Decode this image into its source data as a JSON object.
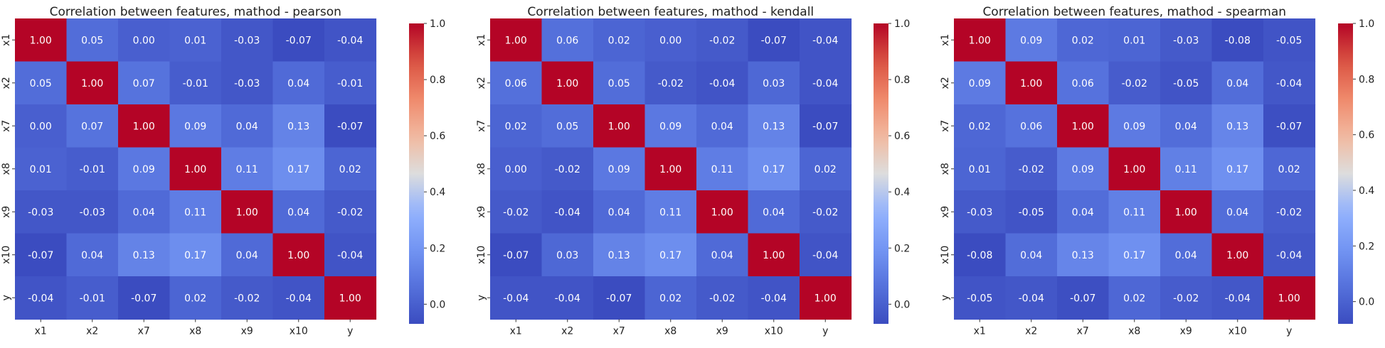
{
  "chart_data": [
    {
      "type": "heatmap",
      "title": "Correlation between features, mathod - pearson",
      "labels": [
        "x1",
        "x2",
        "x7",
        "x8",
        "x9",
        "x10",
        "y"
      ],
      "matrix": [
        [
          1.0,
          0.05,
          0.0,
          0.01,
          -0.03,
          -0.07,
          -0.04
        ],
        [
          0.05,
          1.0,
          0.07,
          -0.01,
          -0.03,
          0.04,
          -0.01
        ],
        [
          0.0,
          0.07,
          1.0,
          0.09,
          0.04,
          0.13,
          -0.07
        ],
        [
          0.01,
          -0.01,
          0.09,
          1.0,
          0.11,
          0.17,
          0.02
        ],
        [
          -0.03,
          -0.03,
          0.04,
          0.11,
          1.0,
          0.04,
          -0.02
        ],
        [
          -0.07,
          0.04,
          0.13,
          0.17,
          0.04,
          1.0,
          -0.04
        ],
        [
          -0.04,
          -0.01,
          -0.07,
          0.02,
          -0.02,
          -0.04,
          1.0
        ]
      ],
      "colormap": "coolwarm",
      "vmin": -0.07,
      "vmax": 1.0,
      "colorbar_ticks": [
        0.0,
        0.2,
        0.4,
        0.6,
        0.8,
        1.0
      ],
      "colorbar_tick_labels": [
        "0.0",
        "0.2",
        "0.4",
        "0.6",
        "0.8",
        "1.0"
      ]
    },
    {
      "type": "heatmap",
      "title": "Correlation between features, mathod - kendall",
      "labels": [
        "x1",
        "x2",
        "x7",
        "x8",
        "x9",
        "x10",
        "y"
      ],
      "matrix": [
        [
          1.0,
          0.06,
          0.02,
          0.0,
          -0.02,
          -0.07,
          -0.04
        ],
        [
          0.06,
          1.0,
          0.05,
          -0.02,
          -0.04,
          0.03,
          -0.04
        ],
        [
          0.02,
          0.05,
          1.0,
          0.09,
          0.04,
          0.13,
          -0.07
        ],
        [
          0.0,
          -0.02,
          0.09,
          1.0,
          0.11,
          0.17,
          0.02
        ],
        [
          -0.02,
          -0.04,
          0.04,
          0.11,
          1.0,
          0.04,
          -0.02
        ],
        [
          -0.07,
          0.03,
          0.13,
          0.17,
          0.04,
          1.0,
          -0.04
        ],
        [
          -0.04,
          -0.04,
          -0.07,
          0.02,
          -0.02,
          -0.04,
          1.0
        ]
      ],
      "colormap": "coolwarm",
      "vmin": -0.07,
      "vmax": 1.0,
      "colorbar_ticks": [
        0.0,
        0.2,
        0.4,
        0.6,
        0.8,
        1.0
      ],
      "colorbar_tick_labels": [
        "0.0",
        "0.2",
        "0.4",
        "0.6",
        "0.8",
        "1.0"
      ]
    },
    {
      "type": "heatmap",
      "title": "Correlation between features, mathod - spearman",
      "labels": [
        "x1",
        "x2",
        "x7",
        "x8",
        "x9",
        "x10",
        "y"
      ],
      "matrix": [
        [
          1.0,
          0.09,
          0.02,
          0.01,
          -0.03,
          -0.08,
          -0.05
        ],
        [
          0.09,
          1.0,
          0.06,
          -0.02,
          -0.05,
          0.04,
          -0.04
        ],
        [
          0.02,
          0.06,
          1.0,
          0.09,
          0.04,
          0.13,
          -0.07
        ],
        [
          0.01,
          -0.02,
          0.09,
          1.0,
          0.11,
          0.17,
          0.02
        ],
        [
          -0.03,
          -0.05,
          0.04,
          0.11,
          1.0,
          0.04,
          -0.02
        ],
        [
          -0.08,
          0.04,
          0.13,
          0.17,
          0.04,
          1.0,
          -0.04
        ],
        [
          -0.05,
          -0.04,
          -0.07,
          0.02,
          -0.02,
          -0.04,
          1.0
        ]
      ],
      "colormap": "coolwarm",
      "vmin": -0.08,
      "vmax": 1.0,
      "colorbar_ticks": [
        0.0,
        0.2,
        0.4,
        0.6,
        0.8,
        1.0
      ],
      "colorbar_tick_labels": [
        "0.0",
        "0.2",
        "0.4",
        "0.6",
        "0.8",
        "1.0"
      ]
    }
  ]
}
